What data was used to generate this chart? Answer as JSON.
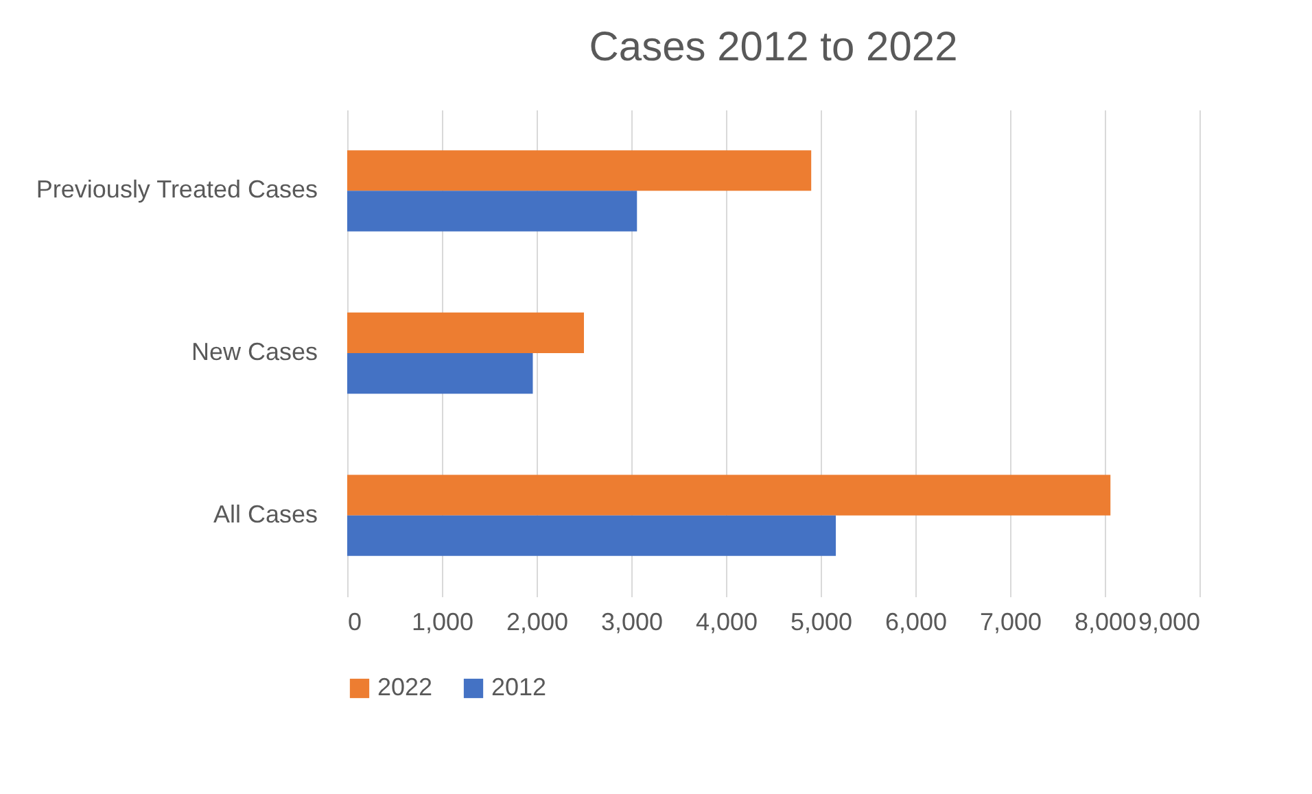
{
  "chart_data": {
    "type": "bar",
    "orientation": "horizontal",
    "title": "Cases 2012 to 2022",
    "categories": [
      "Previously Treated Cases",
      "New Cases",
      "All Cases"
    ],
    "series": [
      {
        "name": "2022",
        "color": "#ed7d31",
        "values": [
          4900,
          2500,
          8060
        ]
      },
      {
        "name": "2012",
        "color": "#4472c4",
        "values": [
          3060,
          1960,
          5160
        ]
      }
    ],
    "xlim": [
      0,
      9000
    ],
    "xticks": [
      0,
      {
        "value": 1000,
        "label": "1,000"
      },
      {
        "value": 2000,
        "label": "2,000"
      },
      {
        "value": 3000,
        "label": "3,000"
      },
      {
        "value": 4000,
        "label": "4,000"
      },
      {
        "value": 5000,
        "label": "5,000"
      },
      {
        "value": 6000,
        "label": "6,000"
      },
      {
        "value": 7000,
        "label": "7,000"
      },
      {
        "value": 8000,
        "label": "8,000"
      },
      {
        "value": 9000,
        "label": "9,000"
      }
    ],
    "grid": "x",
    "legend": "bottom"
  }
}
